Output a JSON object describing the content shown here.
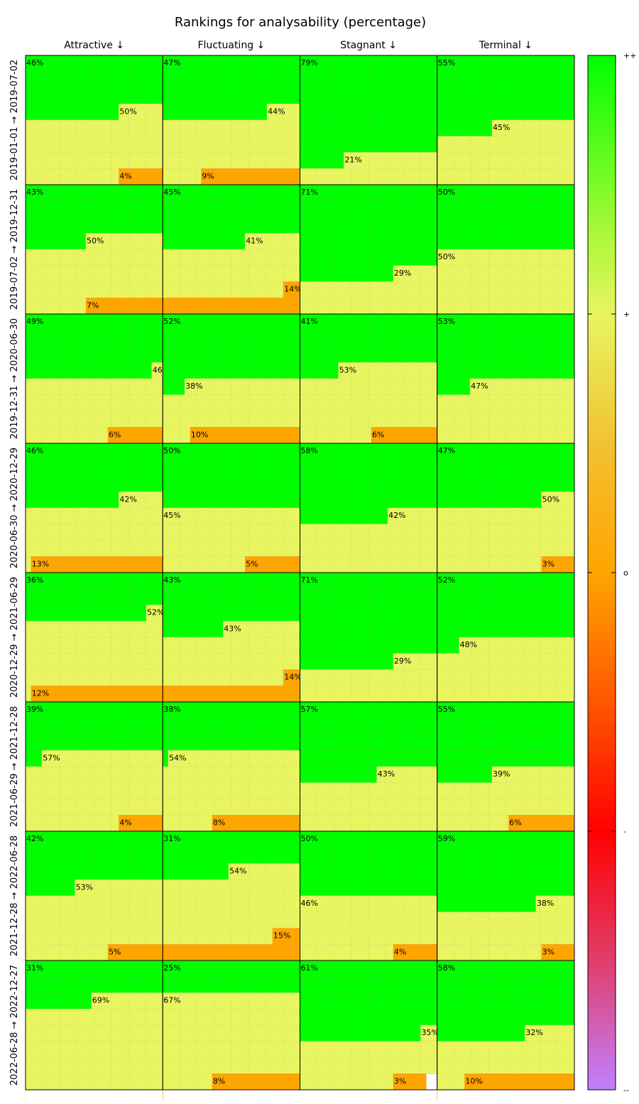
{
  "chart_data": {
    "type": "heatmap",
    "title": "Rankings for analysability (percentage)",
    "columns": [
      "Attractive ↓",
      "Fluctuating ↓",
      "Stagnant ↓",
      "Terminal ↓"
    ],
    "rows": [
      "2019-01-01 → 2019-07-02",
      "2019-07-02 → 2019-12-31",
      "2019-12-31 → 2020-06-30",
      "2020-06-30 → 2020-12-29",
      "2020-12-29 → 2021-06-29",
      "2021-06-29 → 2021-12-28",
      "2021-12-28 → 2022-06-28",
      "2022-06-28 → 2022-12-27"
    ],
    "categories": [
      "++",
      "+",
      "o",
      "-",
      "--"
    ],
    "colors": {
      "++": "#00ff00",
      "+": "#e8f560",
      "o": "#ffa500",
      "-": "#ff0000",
      "--": "#c080ff"
    },
    "colorbar_ticks": [
      "++",
      "+",
      "o",
      "-",
      "--"
    ],
    "cells": [
      [
        [
          46,
          50,
          4,
          0,
          0
        ],
        [
          47,
          44,
          9,
          0,
          0
        ],
        [
          79,
          21,
          0,
          0,
          0
        ],
        [
          55,
          45,
          0,
          0,
          0
        ]
      ],
      [
        [
          43,
          50,
          7,
          0,
          0
        ],
        [
          45,
          41,
          14,
          0,
          0
        ],
        [
          71,
          29,
          0,
          0,
          0
        ],
        [
          50,
          50,
          0,
          0,
          0
        ]
      ],
      [
        [
          49,
          46,
          6,
          0,
          0
        ],
        [
          52,
          38,
          10,
          0,
          0
        ],
        [
          41,
          53,
          6,
          0,
          0
        ],
        [
          53,
          47,
          0,
          0,
          0
        ]
      ],
      [
        [
          46,
          42,
          13,
          0,
          0
        ],
        [
          50,
          45,
          5,
          0,
          0
        ],
        [
          58,
          42,
          0,
          0,
          0
        ],
        [
          47,
          50,
          3,
          0,
          0
        ]
      ],
      [
        [
          36,
          52,
          12,
          0,
          0
        ],
        [
          43,
          43,
          14,
          0,
          0
        ],
        [
          71,
          29,
          0,
          0,
          0
        ],
        [
          52,
          48,
          0,
          0,
          0
        ]
      ],
      [
        [
          39,
          57,
          4,
          0,
          0
        ],
        [
          38,
          54,
          8,
          0,
          0
        ],
        [
          57,
          43,
          0,
          0,
          0
        ],
        [
          55,
          39,
          6,
          0,
          0
        ]
      ],
      [
        [
          42,
          53,
          5,
          0,
          0
        ],
        [
          31,
          54,
          15,
          0,
          0
        ],
        [
          50,
          46,
          4,
          0,
          0
        ],
        [
          59,
          38,
          3,
          0,
          0
        ]
      ],
      [
        [
          31,
          69,
          0,
          0,
          0
        ],
        [
          25,
          67,
          8,
          0,
          0
        ],
        [
          61,
          35,
          3,
          0,
          0
        ],
        [
          58,
          32,
          10,
          0,
          0
        ]
      ]
    ]
  }
}
